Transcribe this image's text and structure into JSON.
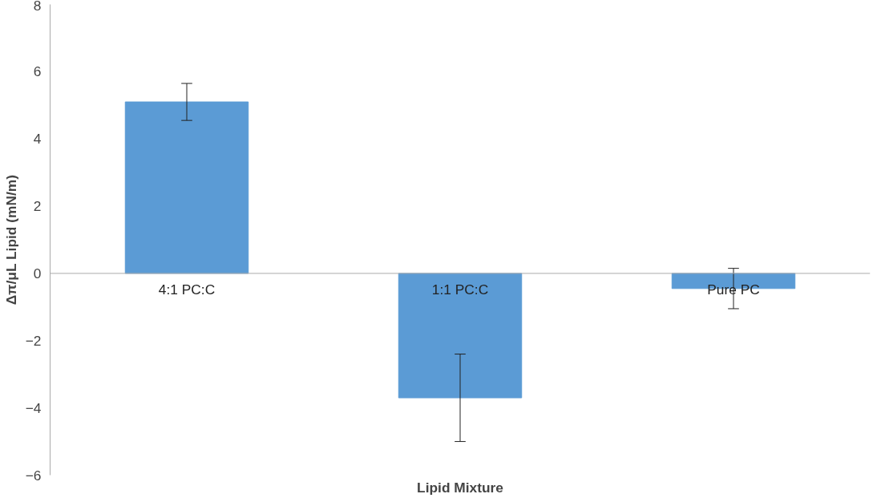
{
  "chart_data": {
    "type": "bar",
    "xlabel": "Lipid Mixture",
    "ylabel": "Δπ/μL Lipid (mN/m)",
    "categories": [
      "4:1 PC:C",
      "1:1 PC:C",
      "Pure PC"
    ],
    "values": [
      5.1,
      -3.7,
      -0.45
    ],
    "errors": [
      0.55,
      1.3,
      0.6
    ],
    "color": "#5b9bd5",
    "ylim": [
      -6,
      8
    ],
    "yticks": [
      -6,
      -4,
      -2,
      0,
      2,
      4,
      6,
      8
    ],
    "grid": false
  }
}
